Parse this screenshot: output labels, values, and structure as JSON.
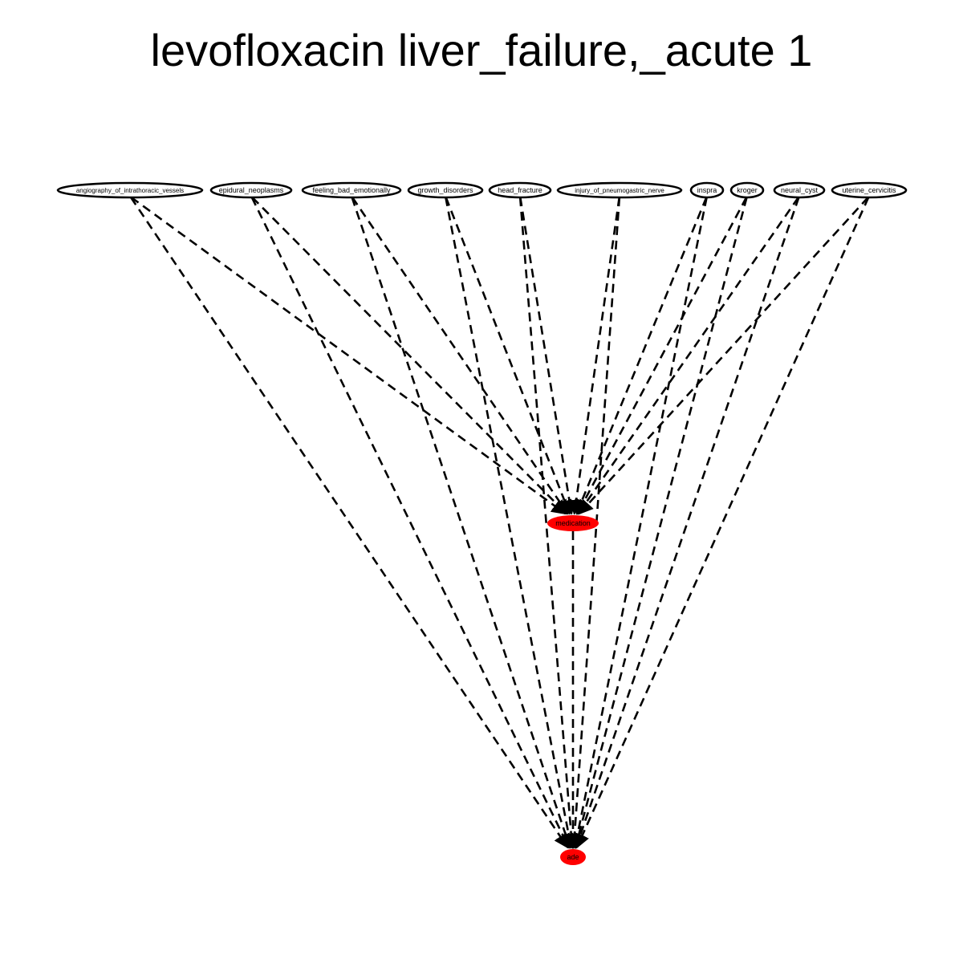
{
  "title": "levofloxacin liver_failure,_acute 1",
  "colors": {
    "edge": "#000000",
    "target_node_fill": "#ff0000",
    "node_stroke": "#000000"
  },
  "nodes": [
    {
      "id": "angiography_of_intrathoracic_vessels",
      "label": "angiography_of_intrathoracic_vessels",
      "kind": "source"
    },
    {
      "id": "epidural_neoplasms",
      "label": "epidural_neoplasms",
      "kind": "source"
    },
    {
      "id": "feeling_bad_emotionally",
      "label": "feeling_bad_emotionally",
      "kind": "source"
    },
    {
      "id": "growth_disorders",
      "label": "growth_disorders",
      "kind": "source"
    },
    {
      "id": "head_fracture",
      "label": "head_fracture",
      "kind": "source"
    },
    {
      "id": "injury_of_pneumogastric_nerve",
      "label": "injury_of_pneumogastric_nerve",
      "kind": "source"
    },
    {
      "id": "inspra",
      "label": "inspra",
      "kind": "source"
    },
    {
      "id": "kroger",
      "label": "kroger",
      "kind": "source"
    },
    {
      "id": "neural_cyst",
      "label": "neural_cyst",
      "kind": "source"
    },
    {
      "id": "uterine_cervicitis",
      "label": "uterine_cervicitis",
      "kind": "source"
    },
    {
      "id": "medication",
      "label": "medication",
      "kind": "target"
    },
    {
      "id": "ade",
      "label": "ade",
      "kind": "target"
    }
  ],
  "edges": [
    {
      "from": "angiography_of_intrathoracic_vessels",
      "to": "medication",
      "style": "dashed"
    },
    {
      "from": "angiography_of_intrathoracic_vessels",
      "to": "ade",
      "style": "dashed"
    },
    {
      "from": "epidural_neoplasms",
      "to": "medication",
      "style": "dashed"
    },
    {
      "from": "epidural_neoplasms",
      "to": "ade",
      "style": "dashed"
    },
    {
      "from": "feeling_bad_emotionally",
      "to": "medication",
      "style": "dashed"
    },
    {
      "from": "feeling_bad_emotionally",
      "to": "ade",
      "style": "dashed"
    },
    {
      "from": "growth_disorders",
      "to": "medication",
      "style": "dashed"
    },
    {
      "from": "growth_disorders",
      "to": "ade",
      "style": "dashed"
    },
    {
      "from": "head_fracture",
      "to": "medication",
      "style": "dashed"
    },
    {
      "from": "head_fracture",
      "to": "ade",
      "style": "dashed"
    },
    {
      "from": "injury_of_pneumogastric_nerve",
      "to": "medication",
      "style": "dashed"
    },
    {
      "from": "injury_of_pneumogastric_nerve",
      "to": "ade",
      "style": "dashed"
    },
    {
      "from": "inspra",
      "to": "medication",
      "style": "dashed"
    },
    {
      "from": "inspra",
      "to": "ade",
      "style": "dashed"
    },
    {
      "from": "kroger",
      "to": "medication",
      "style": "dashed"
    },
    {
      "from": "kroger",
      "to": "ade",
      "style": "dashed"
    },
    {
      "from": "neural_cyst",
      "to": "medication",
      "style": "dashed"
    },
    {
      "from": "neural_cyst",
      "to": "ade",
      "style": "dashed"
    },
    {
      "from": "uterine_cervicitis",
      "to": "medication",
      "style": "dashed"
    },
    {
      "from": "uterine_cervicitis",
      "to": "ade",
      "style": "dashed"
    },
    {
      "from": "medication",
      "to": "ade",
      "style": "dashed"
    }
  ]
}
